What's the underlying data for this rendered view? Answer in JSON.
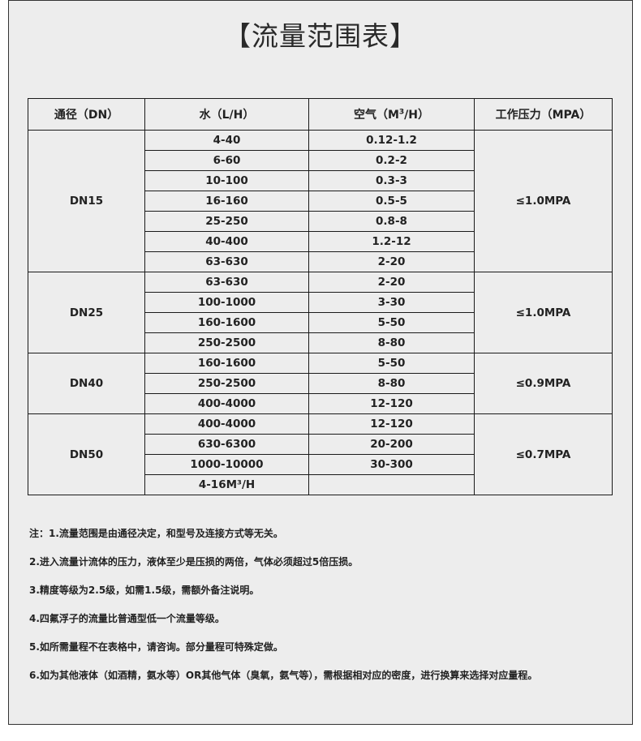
{
  "title": "【流量范围表】",
  "table": {
    "headers": {
      "dn": "通径（DN）",
      "water": "水（L/H）",
      "air_prefix": "空气（M",
      "air_sup": "3",
      "air_suffix": "/H）",
      "pressure": "工作压力（MPA）"
    },
    "groups": [
      {
        "dn": "DN15",
        "pressure": "≤1.0MPA",
        "rows": [
          [
            "4-40",
            "0.12-1.2"
          ],
          [
            "6-60",
            "0.2-2"
          ],
          [
            "10-100",
            "0.3-3"
          ],
          [
            "16-160",
            "0.5-5"
          ],
          [
            "25-250",
            "0.8-8"
          ],
          [
            "40-400",
            "1.2-12"
          ],
          [
            "63-630",
            "2-20"
          ]
        ]
      },
      {
        "dn": "DN25",
        "pressure": "≤1.0MPA",
        "rows": [
          [
            "63-630",
            "2-20"
          ],
          [
            "100-1000",
            "3-30"
          ],
          [
            "160-1600",
            "5-50"
          ],
          [
            "250-2500",
            "8-80"
          ]
        ]
      },
      {
        "dn": "DN40",
        "pressure": "≤0.9MPA",
        "rows": [
          [
            "160-1600",
            "5-50"
          ],
          [
            "250-2500",
            "8-80"
          ],
          [
            "400-4000",
            "12-120"
          ]
        ]
      },
      {
        "dn": "DN50",
        "pressure": "≤0.7MPA",
        "rows": [
          [
            "400-4000",
            "12-120"
          ],
          [
            "630-6300",
            "20-200"
          ],
          [
            "1000-10000",
            "30-300"
          ],
          [
            "4-16M³/H",
            ""
          ]
        ]
      }
    ]
  },
  "notes": [
    "注：1.流量范围是由通径决定，和型号及连接方式等无关。",
    "2.进入流量计流体的压力，液体至少是压损的两倍，气体必须超过5倍压损。",
    "3.精度等级为2.5级，如需1.5级，需额外备注说明。",
    "4.四氟浮子的流量比普通型低一个流量等级。",
    "5.如所需量程不在表格中，请咨询。部分量程可特殊定做。",
    "6.如为其他液体（如酒精，氨水等）OR其他气体（臭氧，氨气等），需根据相对应的密度，进行换算来选择对应量程。"
  ]
}
